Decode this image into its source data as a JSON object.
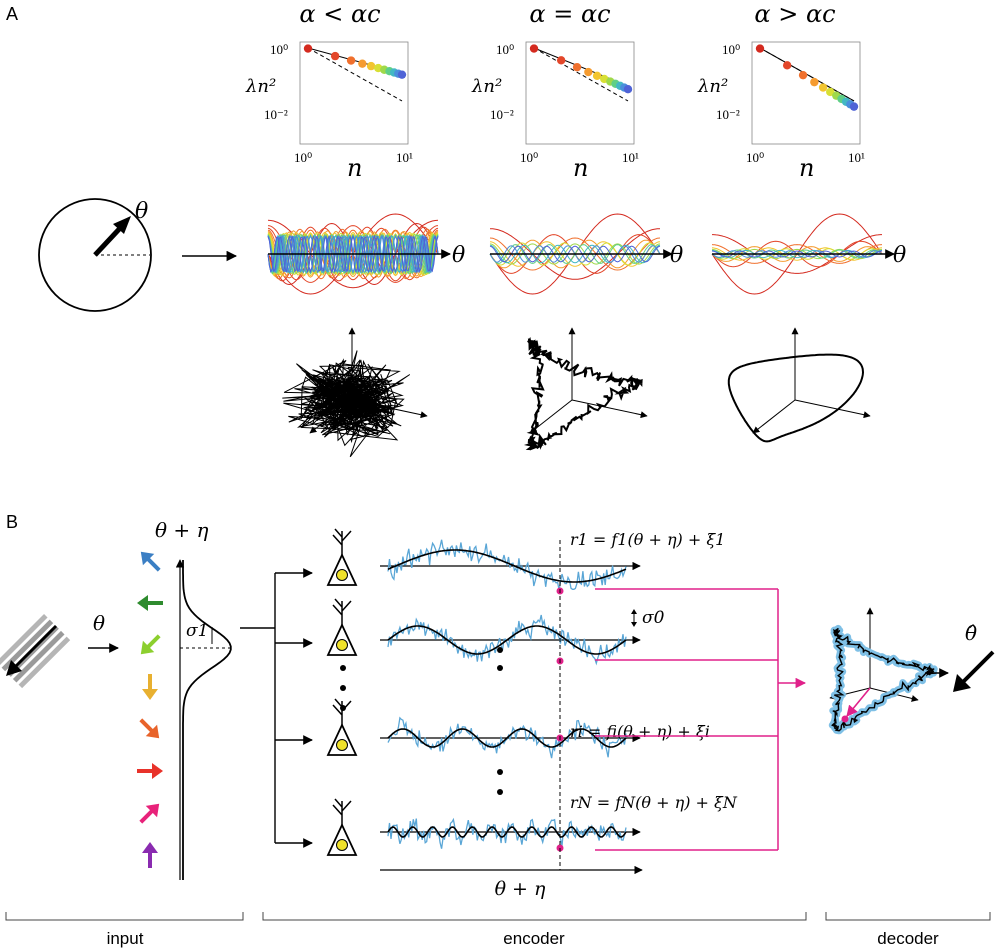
{
  "panel_a": {
    "label": "A",
    "conditions": [
      {
        "title": "α < αc",
        "curve_color": "#e53b2a"
      },
      {
        "title": "α = αc",
        "curve_color": "#e53b2a"
      },
      {
        "title": "α > αc",
        "curve_color": "#e53b2a"
      }
    ],
    "plot": {
      "ylabel": "λn²",
      "xlabel": "n",
      "xtick_min": "10⁰",
      "xtick_max": "10¹",
      "ytick_top": "10⁰",
      "ytick_low": "10⁻²",
      "spectrum_colors": [
        "#d42a1f",
        "#e3472a",
        "#f0702d",
        "#f59b2f",
        "#f2c530",
        "#d8df35",
        "#9fd94a",
        "#5fcf86",
        "#43b8c4",
        "#4a8fdc",
        "#4f63d6"
      ]
    },
    "theta_label": "θ"
  },
  "panel_b": {
    "label": "B",
    "input_label": "θ + η",
    "theta_label": "θ",
    "sigma1": "σ1",
    "sigma0": "σ0",
    "x_axis_label": "θ + η",
    "equations": {
      "r1": "r1 = f1(θ + η) + ξ1",
      "ri": "ri = fi(θ + η) + ξi",
      "rN": "rN = fN(θ + η) + ξN"
    },
    "decoded_label": "θ̂",
    "noisy_color": "#5aa6d6",
    "accent_color": "#e0218a",
    "arrow_colors": [
      "#3b7fc4",
      "#2e8b2e",
      "#8ccf2e",
      "#e8b030",
      "#e8632a",
      "#e8322a",
      "#e8227a",
      "#8a2bb0"
    ]
  },
  "sections": {
    "input": "input",
    "encoder": "encoder",
    "decoder": "decoder"
  }
}
